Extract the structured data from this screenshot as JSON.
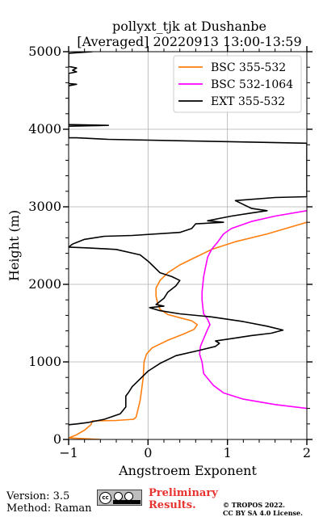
{
  "chart_data": {
    "type": "line",
    "title_line1": "pollyxt_tjk at Dushanbe",
    "title_line2": "[Averaged] 20220913 13:00-13:59",
    "xlabel": "Angstroem Exponent",
    "ylabel": "Height (m)",
    "xlim": [
      -1,
      2
    ],
    "ylim": [
      0,
      5000
    ],
    "xticks": [
      -1,
      0,
      1,
      2
    ],
    "xtick_labels": [
      "−1",
      "0",
      "1",
      "2"
    ],
    "yticks": [
      0,
      1000,
      2000,
      3000,
      4000,
      5000
    ],
    "ytick_labels": [
      "0",
      "1000",
      "2000",
      "3000",
      "4000",
      "5000"
    ],
    "grid": true,
    "legend_position": "top-right",
    "series": [
      {
        "name": "BSC 355-532",
        "color": "#ff7f0e",
        "points": [
          [
            -0.6,
            0
          ],
          [
            -1.0,
            20
          ],
          [
            -0.9,
            60
          ],
          [
            -0.8,
            120
          ],
          [
            -0.72,
            190
          ],
          [
            -0.7,
            240
          ],
          [
            -0.4,
            245
          ],
          [
            -0.18,
            260
          ],
          [
            -0.15,
            290
          ],
          [
            -0.1,
            500
          ],
          [
            -0.08,
            650
          ],
          [
            -0.06,
            800
          ],
          [
            -0.05,
            1000
          ],
          [
            -0.02,
            1100
          ],
          [
            0.05,
            1180
          ],
          [
            0.25,
            1280
          ],
          [
            0.45,
            1360
          ],
          [
            0.58,
            1420
          ],
          [
            0.62,
            1480
          ],
          [
            0.55,
            1530
          ],
          [
            0.4,
            1570
          ],
          [
            0.25,
            1610
          ],
          [
            0.15,
            1680
          ],
          [
            0.12,
            1760
          ],
          [
            0.1,
            1850
          ],
          [
            0.1,
            1950
          ],
          [
            0.15,
            2050
          ],
          [
            0.25,
            2150
          ],
          [
            0.4,
            2250
          ],
          [
            0.6,
            2350
          ],
          [
            0.8,
            2450
          ],
          [
            1.1,
            2550
          ],
          [
            1.5,
            2650
          ],
          [
            2.0,
            2800
          ]
        ]
      },
      {
        "name": "BSC 532-1064",
        "color": "#ff00ff",
        "points": [
          [
            2.0,
            400
          ],
          [
            1.6,
            450
          ],
          [
            1.2,
            520
          ],
          [
            0.95,
            600
          ],
          [
            0.82,
            700
          ],
          [
            0.7,
            850
          ],
          [
            0.68,
            1000
          ],
          [
            0.65,
            1100
          ],
          [
            0.66,
            1200
          ],
          [
            0.7,
            1300
          ],
          [
            0.75,
            1420
          ],
          [
            0.78,
            1480
          ],
          [
            0.75,
            1550
          ],
          [
            0.7,
            1620
          ],
          [
            0.69,
            1700
          ],
          [
            0.68,
            1800
          ],
          [
            0.68,
            1900
          ],
          [
            0.69,
            2000
          ],
          [
            0.7,
            2100
          ],
          [
            0.72,
            2200
          ],
          [
            0.75,
            2350
          ],
          [
            0.8,
            2450
          ],
          [
            0.88,
            2550
          ],
          [
            0.95,
            2650
          ],
          [
            1.05,
            2720
          ],
          [
            1.3,
            2810
          ],
          [
            1.6,
            2880
          ],
          [
            2.0,
            2950
          ]
        ]
      },
      {
        "name": "EXT 355-532",
        "color": "#000000",
        "points": [
          [
            -1.0,
            190
          ],
          [
            -0.9,
            200
          ],
          [
            -0.75,
            220
          ],
          [
            -0.55,
            260
          ],
          [
            -0.35,
            330
          ],
          [
            -0.28,
            420
          ],
          [
            -0.28,
            480
          ],
          [
            -0.28,
            510
          ],
          [
            -0.28,
            560
          ],
          [
            -0.25,
            600
          ],
          [
            -0.2,
            680
          ],
          [
            -0.1,
            780
          ],
          [
            0.0,
            880
          ],
          [
            0.15,
            980
          ],
          [
            0.35,
            1080
          ],
          [
            0.65,
            1150
          ],
          [
            0.85,
            1200
          ],
          [
            0.9,
            1240
          ],
          [
            0.85,
            1270
          ],
          [
            1.05,
            1300
          ],
          [
            1.3,
            1340
          ],
          [
            1.55,
            1370
          ],
          [
            1.7,
            1410
          ],
          [
            1.5,
            1460
          ],
          [
            1.2,
            1520
          ],
          [
            0.8,
            1580
          ],
          [
            0.4,
            1620
          ],
          [
            0.15,
            1660
          ],
          [
            0.02,
            1700
          ],
          [
            0.2,
            1720
          ],
          [
            0.1,
            1740
          ],
          [
            0.2,
            1820
          ],
          [
            0.25,
            1900
          ],
          [
            0.35,
            1980
          ],
          [
            0.4,
            2050
          ],
          [
            0.3,
            2100
          ],
          [
            0.15,
            2150
          ],
          [
            0.05,
            2250
          ],
          [
            0.0,
            2300
          ],
          [
            -0.1,
            2380
          ],
          [
            -0.4,
            2450
          ],
          [
            -0.75,
            2470
          ],
          [
            -1.0,
            2480
          ],
          [
            -0.95,
            2520
          ],
          [
            -0.8,
            2580
          ],
          [
            -0.55,
            2620
          ],
          [
            -0.2,
            2630
          ],
          [
            0.4,
            2670
          ],
          [
            0.55,
            2720
          ],
          [
            0.6,
            2780
          ],
          [
            0.95,
            2800
          ],
          [
            0.75,
            2820
          ],
          [
            0.9,
            2850
          ],
          [
            1.05,
            2880
          ],
          [
            1.3,
            2920
          ],
          [
            1.5,
            2950
          ],
          [
            1.3,
            2980
          ],
          [
            1.1,
            3080
          ],
          [
            1.6,
            3120
          ],
          [
            2.0,
            3130
          ],
          [
            2.0,
            3820
          ],
          [
            1.5,
            3830
          ],
          [
            0.5,
            3850
          ],
          [
            -0.5,
            3870
          ],
          [
            -0.9,
            3890
          ],
          [
            -1.0,
            3890
          ],
          [
            -1.0,
            4040
          ],
          [
            -0.5,
            4050
          ],
          [
            -1.0,
            4060
          ],
          [
            -1.0,
            4560
          ],
          [
            -0.9,
            4580
          ],
          [
            -1.0,
            4590
          ],
          [
            -1.0,
            4720
          ],
          [
            -0.9,
            4740
          ],
          [
            -0.95,
            4760
          ],
          [
            -0.9,
            4790
          ],
          [
            -1.0,
            4810
          ],
          [
            -1.0,
            4980
          ],
          [
            -0.7,
            5000
          ]
        ]
      }
    ]
  },
  "footer": {
    "version": "Version: 3.5",
    "method": "Method: Raman",
    "cc_badge_text": "cc",
    "preliminary_line1": "Preliminary",
    "preliminary_line2": "Results.",
    "copyright_line1": "© TROPOS 2022.",
    "copyright_line2": "CC BY SA 4.0 License."
  }
}
